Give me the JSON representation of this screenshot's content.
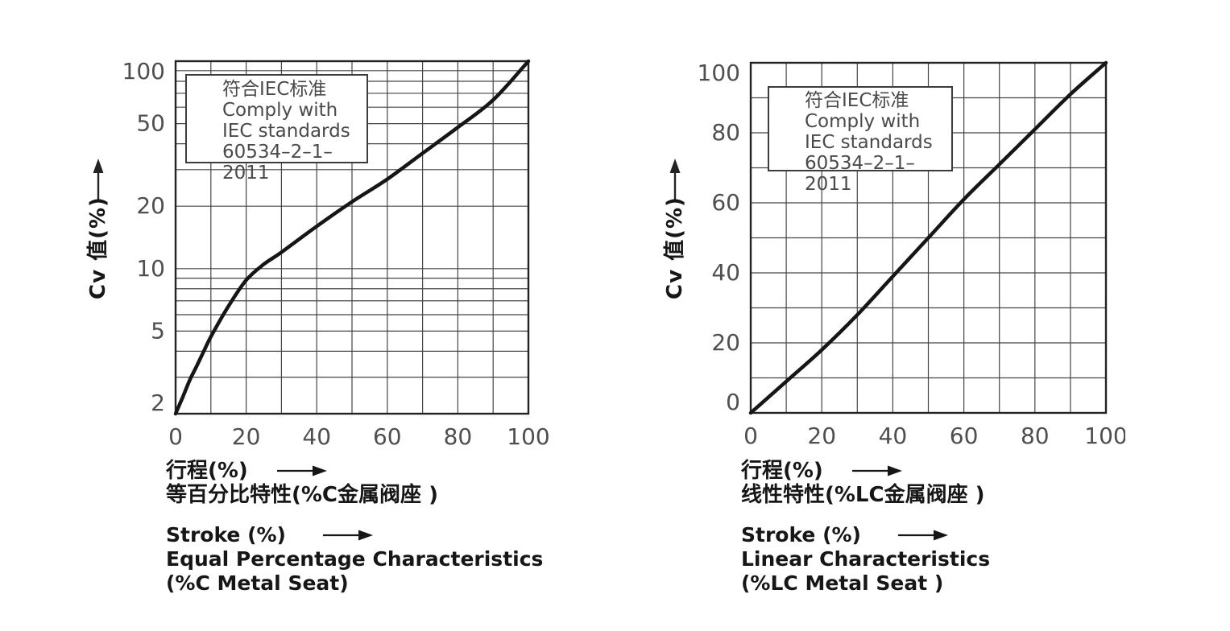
{
  "page": {
    "background": "#ffffff"
  },
  "colors": {
    "grid": "#454545",
    "axis": "#232323",
    "curve": "#161616",
    "tick_label": "#4f4f4f",
    "caption_text": "#161616",
    "note_text": "#4a4a4a"
  },
  "chart_data": [
    {
      "type": "line",
      "note": [
        "符合IEC标准",
        "Comply with",
        "IEC standards",
        "60534–2–1–2011"
      ],
      "ylabel": "Cv 值(%)",
      "xlabel_cn": "行程(%)",
      "subtitle_cn": "等百分比特性(%C金属阀座 )",
      "xlabel_en": "Stroke (%)",
      "subtitle_en_1": "Equal Percentage Characteristics",
      "subtitle_en_2": "(%C Metal Seat)",
      "y_scale": "log",
      "xlim": [
        0,
        100
      ],
      "ylim": [
        2,
        100
      ],
      "x_ticks_major": [
        0,
        20,
        40,
        60,
        80,
        100
      ],
      "x_grid_step": 10,
      "y_ticks_major": [
        2,
        5,
        10,
        20,
        50,
        100
      ],
      "y_gridlines": [
        2,
        3,
        4,
        5,
        6,
        7,
        8,
        9,
        10,
        20,
        30,
        40,
        50,
        60,
        70,
        80,
        90,
        100
      ],
      "grid": true,
      "legend": "none",
      "x": [
        0,
        2,
        4,
        6,
        8,
        10,
        15,
        20,
        25,
        30,
        40,
        50,
        60,
        70,
        80,
        90,
        100
      ],
      "values": [
        2,
        2.4,
        2.9,
        3.4,
        4.0,
        4.7,
        6.6,
        8.8,
        10.5,
        12,
        16,
        21,
        27,
        36,
        48,
        65,
        100
      ]
    },
    {
      "type": "line",
      "note": [
        "符合IEC标准",
        "Comply with",
        "IEC standards",
        "60534–2–1–2011"
      ],
      "ylabel": "Cv 值(%)",
      "xlabel_cn": "行程(%)",
      "subtitle_cn": "线性特性(%LC金属阀座 )",
      "xlabel_en": "Stroke (%)",
      "subtitle_en_1": "Linear Characteristics",
      "subtitle_en_2": "(%LC Metal Seat )",
      "y_scale": "linear",
      "xlim": [
        0,
        100
      ],
      "ylim": [
        0,
        100
      ],
      "x_ticks_major": [
        0,
        20,
        40,
        60,
        80,
        100
      ],
      "x_grid_step": 10,
      "y_ticks_major": [
        0,
        20,
        40,
        60,
        80,
        100
      ],
      "y_grid_step": 10,
      "grid": true,
      "legend": "none",
      "x": [
        0,
        10,
        20,
        30,
        40,
        50,
        60,
        70,
        80,
        90,
        100
      ],
      "values": [
        0,
        9,
        18,
        28,
        39,
        50,
        61,
        71,
        81,
        91,
        100
      ]
    }
  ]
}
